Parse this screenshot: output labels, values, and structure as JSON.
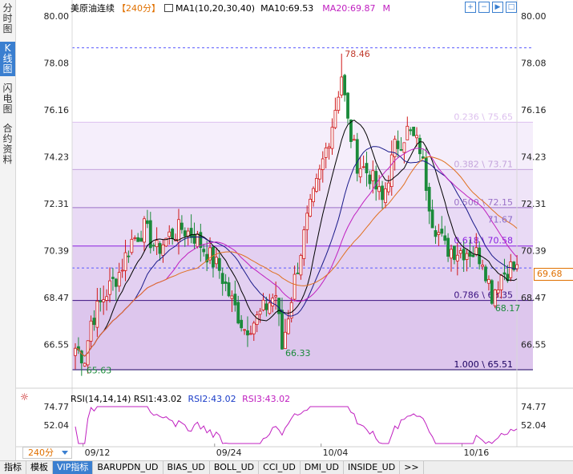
{
  "side_tabs": [
    {
      "label": "分时图",
      "active": false
    },
    {
      "label": "K线图",
      "active": true
    },
    {
      "label": "闪电图",
      "active": false
    },
    {
      "label": "合约资料",
      "active": false
    }
  ],
  "legend": {
    "title": "美原油连续",
    "period": "【240分】",
    "ma1": "MA1(10,20,30,40)",
    "ma10": "MA10:69.53",
    "ma20": "MA20:69.87",
    "mark": "M"
  },
  "toolbar_icons": [
    "zoom-in-icon",
    "zoom-out-icon",
    "scroll-icon",
    "expand-icon"
  ],
  "rsi_legend": {
    "r1": "RSI(14,14,14)  RSI1:43.02",
    "r2": "RSI2:43.02",
    "r3": "RSI3:43.02"
  },
  "period_select": "240分",
  "last_price": "69.68",
  "date_labels": [
    "09/12",
    "09/24",
    "10/04",
    "10/16"
  ],
  "price_axis_labels": [
    "80.00",
    "78.08",
    "76.16",
    "74.23",
    "72.31",
    "70.39",
    "68.47",
    "66.55"
  ],
  "rsi_axis_labels": [
    "74.77",
    "52.04"
  ],
  "annotations": {
    "high": "78.46",
    "low1": "65.63",
    "low2": "66.33",
    "low3": "68.17",
    "level": "71.67"
  },
  "fib_levels": [
    {
      "label": "0.236 \\ 75.65",
      "price": 75.65,
      "color": "#ddc0ee"
    },
    {
      "label": "0.382 \\ 73.71",
      "price": 73.71,
      "color": "#c4a4dc"
    },
    {
      "label": "0.500 \\ 72.15",
      "price": 72.15,
      "color": "#9a70c8"
    },
    {
      "label": "0.618 \\ 70.58",
      "price": 70.58,
      "color": "#8a20e0"
    },
    {
      "label": "0.786 \\ 68.35",
      "price": 68.35,
      "color": "#3a1080"
    },
    {
      "label": "1.000 \\ 65.51",
      "price": 65.51,
      "color": "#1a0060"
    }
  ],
  "bottom_tabs": [
    {
      "label": "指标",
      "active": false
    },
    {
      "label": "模板",
      "active": false
    },
    {
      "label": "VIP指标",
      "active": true
    },
    {
      "label": "BARUPDN_UD",
      "active": false
    },
    {
      "label": "BIAS_UD",
      "active": false
    },
    {
      "label": "BOLL_UD",
      "active": false
    },
    {
      "label": "CCI_UD",
      "active": false
    },
    {
      "label": "DMI_UD",
      "active": false
    },
    {
      "label": "INSIDE_UD",
      "active": false
    },
    {
      "label": ">>",
      "active": false
    }
  ],
  "colors": {
    "up": "#d01818",
    "down": "#1a8a3a",
    "ma10": "#000000",
    "ma20": "#1a1a8a",
    "ma30": "#c020c0",
    "ma40": "#e07020",
    "grid": "#5a5aff",
    "accent": "#e07000"
  },
  "chart_data": {
    "type": "candlestick",
    "y_range": [
      65.51,
      80.0
    ],
    "rsi_range": [
      29.0,
      74.77
    ],
    "x_labels": [
      "09/12",
      "09/24",
      "10/04",
      "10/16"
    ],
    "high": 78.46,
    "low": 65.63,
    "last": 69.68,
    "anchors": [
      [
        0,
        66.4
      ],
      [
        3,
        66.0
      ],
      [
        5,
        67.5
      ],
      [
        10,
        68.7
      ],
      [
        14,
        69.5
      ],
      [
        18,
        70.8
      ],
      [
        22,
        71.3
      ],
      [
        26,
        70.4
      ],
      [
        30,
        71.0
      ],
      [
        34,
        71.3
      ],
      [
        38,
        71.0
      ],
      [
        42,
        70.3
      ],
      [
        46,
        69.6
      ],
      [
        50,
        68.3
      ],
      [
        54,
        67.2
      ],
      [
        58,
        67.6
      ],
      [
        62,
        68.3
      ],
      [
        64,
        68.6
      ],
      [
        66,
        66.4
      ],
      [
        70,
        69.2
      ],
      [
        74,
        71.6
      ],
      [
        78,
        73.5
      ],
      [
        82,
        75.6
      ],
      [
        85,
        77.6
      ],
      [
        87,
        75.6
      ],
      [
        90,
        74.0
      ],
      [
        94,
        73.5
      ],
      [
        98,
        72.4
      ],
      [
        102,
        74.6
      ],
      [
        106,
        75.3
      ],
      [
        110,
        74.6
      ],
      [
        114,
        71.7
      ],
      [
        118,
        70.5
      ],
      [
        122,
        70.4
      ],
      [
        126,
        70.4
      ],
      [
        130,
        70.1
      ],
      [
        133,
        68.6
      ],
      [
        136,
        69.4
      ],
      [
        139,
        69.7
      ],
      [
        141,
        69.6
      ]
    ]
  }
}
